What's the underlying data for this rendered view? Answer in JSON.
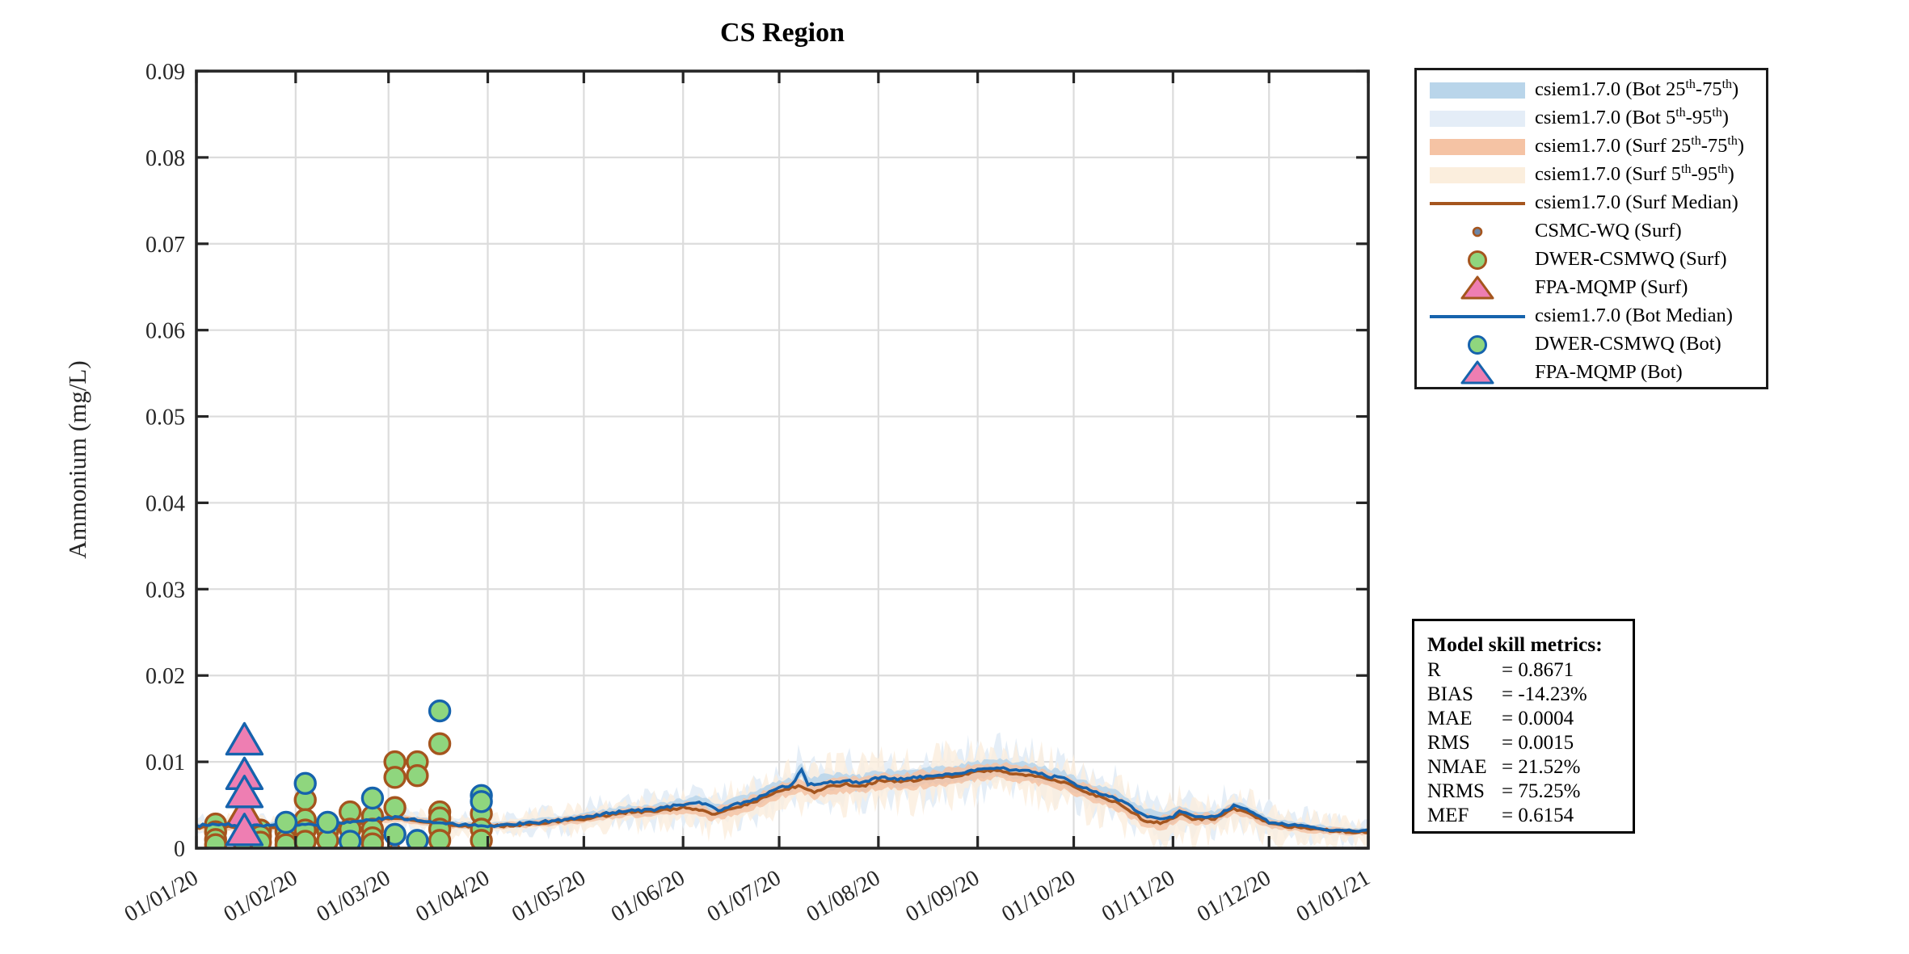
{
  "title": "CS Region",
  "axes": {
    "ylabel": "Ammonium (mg/L)",
    "y_tick_labels": [
      "0",
      "0.01",
      "0.02",
      "0.03",
      "0.04",
      "0.05",
      "0.06",
      "0.07",
      "0.08",
      "0.09"
    ],
    "y_tick_values": [
      0,
      0.01,
      0.02,
      0.03,
      0.04,
      0.05,
      0.06,
      0.07,
      0.08,
      0.09
    ],
    "ylim": [
      0,
      0.09
    ],
    "x_tick_labels": [
      "01/01/20",
      "01/02/20",
      "01/03/20",
      "01/04/20",
      "01/05/20",
      "01/06/20",
      "01/07/20",
      "01/08/20",
      "01/09/20",
      "01/10/20",
      "01/11/20",
      "01/12/20",
      "01/01/21"
    ],
    "x_tick_days": [
      0,
      31,
      60,
      91,
      121,
      152,
      182,
      213,
      244,
      274,
      305,
      335,
      366
    ],
    "xlim_days": [
      0,
      366
    ]
  },
  "colors": {
    "axis": "#262626",
    "grid": "#dcdcdc",
    "bot_band_2575": "#b9d5ea",
    "bot_band_0595": "#e4edf7",
    "surf_band_2575": "#f5c3a4",
    "surf_band_0595": "#fbeedd",
    "surf_median": "#a5551e",
    "bot_median": "#1663ad",
    "marker_green": "#8fd67e",
    "marker_pink": "#ee7eb2",
    "csmc_fill": "#6b86a8"
  },
  "legend": {
    "items": [
      {
        "marker": "band",
        "color_key": "bot_band_2575",
        "parts": [
          {
            "t": "csiem1.7.0 (Bot 25"
          },
          {
            "s": "th"
          },
          {
            "t": "-75"
          },
          {
            "s": "th"
          },
          {
            "t": ")"
          }
        ]
      },
      {
        "marker": "band",
        "color_key": "bot_band_0595",
        "parts": [
          {
            "t": "csiem1.7.0 (Bot 5"
          },
          {
            "s": "th"
          },
          {
            "t": "-95"
          },
          {
            "s": "th"
          },
          {
            "t": ")"
          }
        ]
      },
      {
        "marker": "band",
        "color_key": "surf_band_2575",
        "parts": [
          {
            "t": "csiem1.7.0 (Surf 25"
          },
          {
            "s": "th"
          },
          {
            "t": "-75"
          },
          {
            "s": "th"
          },
          {
            "t": ")"
          }
        ]
      },
      {
        "marker": "band",
        "color_key": "surf_band_0595",
        "parts": [
          {
            "t": "csiem1.7.0 (Surf 5"
          },
          {
            "s": "th"
          },
          {
            "t": "-95"
          },
          {
            "s": "th"
          },
          {
            "t": ")"
          }
        ]
      },
      {
        "marker": "line",
        "color_key": "surf_median",
        "parts": [
          {
            "t": "csiem1.7.0 (Surf Median)"
          }
        ]
      },
      {
        "marker": "dot",
        "color_key": "csmc_fill",
        "parts": [
          {
            "t": "CSMC-WQ (Surf)"
          }
        ]
      },
      {
        "marker": "circle",
        "edge_key": "surf_median",
        "fill_key": "marker_green",
        "parts": [
          {
            "t": "DWER-CSMWQ (Surf)"
          }
        ]
      },
      {
        "marker": "triangle",
        "edge_key": "surf_median",
        "fill_key": "marker_pink",
        "parts": [
          {
            "t": "FPA-MQMP (Surf)"
          }
        ]
      },
      {
        "marker": "line",
        "color_key": "bot_median",
        "parts": [
          {
            "t": "csiem1.7.0 (Bot Median)"
          }
        ]
      },
      {
        "marker": "circle",
        "edge_key": "bot_median",
        "fill_key": "marker_green",
        "parts": [
          {
            "t": "DWER-CSMWQ (Bot)"
          }
        ]
      },
      {
        "marker": "triangle",
        "edge_key": "bot_median",
        "fill_key": "marker_pink",
        "parts": [
          {
            "t": "FPA-MQMP (Bot)"
          }
        ]
      }
    ]
  },
  "metrics": {
    "title": "Model skill metrics:",
    "rows": [
      {
        "label": "R",
        "value": "0.8671"
      },
      {
        "label": "BIAS",
        "value": "-14.23%"
      },
      {
        "label": "MAE",
        "value": "0.0004"
      },
      {
        "label": "RMS",
        "value": "0.0015"
      },
      {
        "label": "NMAE",
        "value": "21.52%"
      },
      {
        "label": "NRMS",
        "value": "75.25%"
      },
      {
        "label": "MEF",
        "value": "0.6154"
      }
    ]
  },
  "chart_data": {
    "type": "line",
    "title": "CS Region",
    "xlabel": "",
    "ylabel": "Ammonium (mg/L)",
    "ylim": [
      0,
      0.09
    ],
    "x_unit": "days since 01/01/2020",
    "x_range_days": [
      0,
      366
    ],
    "grid": true,
    "legend_position": "outside-right",
    "series": [
      {
        "name": "csiem1.7.0 (Bot Median)",
        "type": "line",
        "points": [
          [
            0,
            0.0026
          ],
          [
            8,
            0.0028
          ],
          [
            15,
            0.0025
          ],
          [
            22,
            0.0027
          ],
          [
            31,
            0.0026
          ],
          [
            40,
            0.0028
          ],
          [
            50,
            0.003
          ],
          [
            57,
            0.0034
          ],
          [
            62,
            0.0036
          ],
          [
            68,
            0.0033
          ],
          [
            75,
            0.0029
          ],
          [
            83,
            0.0027
          ],
          [
            91,
            0.0026
          ],
          [
            100,
            0.0028
          ],
          [
            110,
            0.0031
          ],
          [
            121,
            0.0036
          ],
          [
            128,
            0.004
          ],
          [
            135,
            0.0044
          ],
          [
            142,
            0.0044
          ],
          [
            152,
            0.0051
          ],
          [
            157,
            0.0054
          ],
          [
            163,
            0.0044
          ],
          [
            168,
            0.005
          ],
          [
            175,
            0.0058
          ],
          [
            182,
            0.007
          ],
          [
            186,
            0.0073
          ],
          [
            189,
            0.0091
          ],
          [
            191,
            0.0073
          ],
          [
            196,
            0.0076
          ],
          [
            203,
            0.0078
          ],
          [
            208,
            0.0075
          ],
          [
            213,
            0.0082
          ],
          [
            220,
            0.008
          ],
          [
            228,
            0.0083
          ],
          [
            236,
            0.0086
          ],
          [
            244,
            0.0091
          ],
          [
            250,
            0.0094
          ],
          [
            256,
            0.009
          ],
          [
            262,
            0.0088
          ],
          [
            266,
            0.0083
          ],
          [
            270,
            0.0082
          ],
          [
            274,
            0.0075
          ],
          [
            280,
            0.0066
          ],
          [
            286,
            0.006
          ],
          [
            291,
            0.005
          ],
          [
            296,
            0.0038
          ],
          [
            301,
            0.0034
          ],
          [
            305,
            0.0037
          ],
          [
            307,
            0.0044
          ],
          [
            311,
            0.0037
          ],
          [
            318,
            0.0036
          ],
          [
            324,
            0.0049
          ],
          [
            328,
            0.0044
          ],
          [
            335,
            0.003
          ],
          [
            341,
            0.0027
          ],
          [
            348,
            0.0024
          ],
          [
            355,
            0.0021
          ],
          [
            360,
            0.002
          ],
          [
            366,
            0.002
          ]
        ]
      },
      {
        "name": "csiem1.7.0 (Surf Median)",
        "type": "line",
        "points": [
          [
            0,
            0.0024
          ],
          [
            8,
            0.0025
          ],
          [
            15,
            0.0023
          ],
          [
            22,
            0.0025
          ],
          [
            31,
            0.0024
          ],
          [
            40,
            0.0026
          ],
          [
            50,
            0.0028
          ],
          [
            57,
            0.0033
          ],
          [
            62,
            0.0035
          ],
          [
            68,
            0.0032
          ],
          [
            75,
            0.0028
          ],
          [
            83,
            0.0026
          ],
          [
            91,
            0.0025
          ],
          [
            100,
            0.0027
          ],
          [
            110,
            0.003
          ],
          [
            121,
            0.0034
          ],
          [
            128,
            0.0038
          ],
          [
            135,
            0.0042
          ],
          [
            142,
            0.0042
          ],
          [
            152,
            0.0047
          ],
          [
            157,
            0.0044
          ],
          [
            161,
            0.0039
          ],
          [
            168,
            0.0046
          ],
          [
            175,
            0.0055
          ],
          [
            182,
            0.0066
          ],
          [
            186,
            0.007
          ],
          [
            189,
            0.0072
          ],
          [
            193,
            0.0065
          ],
          [
            198,
            0.0072
          ],
          [
            203,
            0.0074
          ],
          [
            208,
            0.0072
          ],
          [
            213,
            0.0078
          ],
          [
            220,
            0.0077
          ],
          [
            228,
            0.008
          ],
          [
            236,
            0.0083
          ],
          [
            244,
            0.0089
          ],
          [
            250,
            0.009
          ],
          [
            256,
            0.0086
          ],
          [
            262,
            0.0084
          ],
          [
            266,
            0.0079
          ],
          [
            270,
            0.0077
          ],
          [
            274,
            0.0071
          ],
          [
            280,
            0.0062
          ],
          [
            286,
            0.0055
          ],
          [
            291,
            0.0045
          ],
          [
            296,
            0.0032
          ],
          [
            301,
            0.0029
          ],
          [
            305,
            0.0034
          ],
          [
            307,
            0.004
          ],
          [
            311,
            0.0034
          ],
          [
            318,
            0.0034
          ],
          [
            324,
            0.0046
          ],
          [
            328,
            0.0041
          ],
          [
            335,
            0.0028
          ],
          [
            341,
            0.0025
          ],
          [
            348,
            0.0022
          ],
          [
            355,
            0.002
          ],
          [
            360,
            0.0019
          ],
          [
            366,
            0.0019
          ]
        ]
      },
      {
        "name": "band_profile (half-widths around each median)",
        "type": "band",
        "days": [
          0,
          31,
          60,
          91,
          121,
          152,
          182,
          213,
          244,
          274,
          305,
          335,
          366
        ],
        "iqr_half": [
          0.0004,
          0.0004,
          0.0005,
          0.0004,
          0.0006,
          0.0008,
          0.001,
          0.0011,
          0.0012,
          0.0011,
          0.0009,
          0.0006,
          0.0004
        ],
        "p90_half": [
          0.0013,
          0.0013,
          0.0014,
          0.0013,
          0.0018,
          0.0024,
          0.003,
          0.0032,
          0.0034,
          0.0032,
          0.003,
          0.0022,
          0.0014
        ]
      },
      {
        "name": "CSMC-WQ (Surf)",
        "type": "scatter",
        "marker": "small-dot",
        "points": [
          [
            6,
            0.0001
          ],
          [
            15,
            0.0001
          ],
          [
            20,
            0.0001
          ],
          [
            28,
            0.0001
          ],
          [
            34,
            0.0001
          ],
          [
            41,
            0.0001
          ],
          [
            48,
            0.0001
          ],
          [
            55,
            0.0001
          ],
          [
            62,
            0.0001
          ],
          [
            69,
            0.0001
          ],
          [
            76,
            0.0001
          ],
          [
            89,
            0.0001
          ]
        ]
      },
      {
        "name": "DWER-CSMWQ (Surf)",
        "type": "scatter",
        "marker": "circle",
        "points": [
          [
            6,
            0.0028
          ],
          [
            6,
            0.0019
          ],
          [
            6,
            0.001
          ],
          [
            6,
            0.0004
          ],
          [
            15,
            0.0005
          ],
          [
            20,
            0.0021
          ],
          [
            20,
            0.0014
          ],
          [
            20,
            0.0007
          ],
          [
            28,
            0.0019
          ],
          [
            28,
            0.0009
          ],
          [
            28,
            0.0004
          ],
          [
            34,
            0.0056
          ],
          [
            34,
            0.0033
          ],
          [
            34,
            0.0021
          ],
          [
            34,
            0.0008
          ],
          [
            41,
            0.002
          ],
          [
            41,
            0.0009
          ],
          [
            48,
            0.0042
          ],
          [
            48,
            0.0022
          ],
          [
            55,
            0.0037
          ],
          [
            55,
            0.0022
          ],
          [
            55,
            0.0012
          ],
          [
            55,
            0.0005
          ],
          [
            62,
            0.01
          ],
          [
            62,
            0.0082
          ],
          [
            62,
            0.0047
          ],
          [
            62,
            0.0016
          ],
          [
            69,
            0.01
          ],
          [
            69,
            0.0084
          ],
          [
            76,
            0.0121
          ],
          [
            76,
            0.0042
          ],
          [
            76,
            0.0035
          ],
          [
            76,
            0.0022
          ],
          [
            76,
            0.0009
          ],
          [
            89,
            0.004
          ],
          [
            89,
            0.0022
          ],
          [
            89,
            0.0009
          ]
        ]
      },
      {
        "name": "FPA-MQMP (Surf)",
        "type": "scatter",
        "marker": "triangle",
        "points": [
          [
            15,
            0.0039
          ]
        ]
      },
      {
        "name": "DWER-CSMWQ (Bot)",
        "type": "scatter",
        "marker": "circle",
        "points": [
          [
            28,
            0.003
          ],
          [
            34,
            0.0075
          ],
          [
            41,
            0.003
          ],
          [
            48,
            0.0008
          ],
          [
            55,
            0.0058
          ],
          [
            62,
            0.0016
          ],
          [
            69,
            0.0009
          ],
          [
            76,
            0.0159
          ],
          [
            89,
            0.0061
          ],
          [
            89,
            0.0054
          ]
        ]
      },
      {
        "name": "FPA-MQMP (Bot)",
        "type": "scatter",
        "marker": "triangle",
        "points": [
          [
            15,
            0.0122
          ],
          [
            15,
            0.0082
          ],
          [
            15,
            0.0061
          ],
          [
            15,
            0.0017
          ]
        ]
      }
    ]
  }
}
